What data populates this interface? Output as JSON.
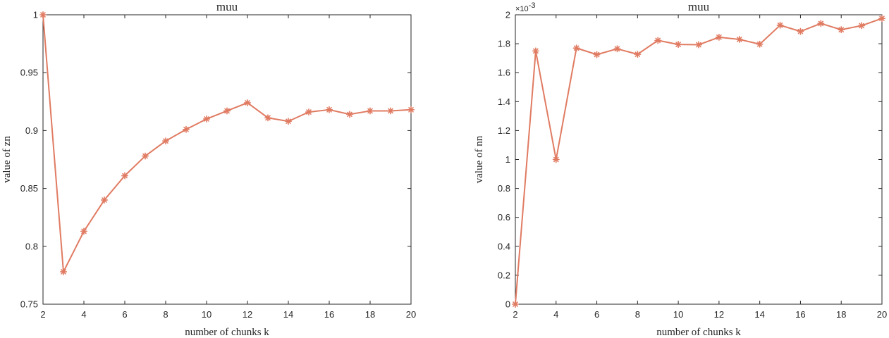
{
  "chart_data": [
    {
      "type": "line",
      "title": "muu",
      "xlabel": "number of chunks k",
      "ylabel": "value of zn",
      "xlim": [
        2,
        20
      ],
      "ylim": [
        0.75,
        1
      ],
      "xticks": [
        2,
        4,
        6,
        8,
        10,
        12,
        14,
        16,
        18,
        20
      ],
      "yticks": [
        0.75,
        0.8,
        0.85,
        0.9,
        0.95,
        1
      ],
      "ytick_labels": [
        "0.75",
        "0.8",
        "0.85",
        "0.9",
        "0.95",
        "1"
      ],
      "grid": false,
      "color": "#E07B62",
      "marker": "asterisk",
      "x": [
        2,
        3,
        4,
        5,
        6,
        7,
        8,
        9,
        10,
        11,
        12,
        13,
        14,
        15,
        16,
        17,
        18,
        19,
        20
      ],
      "y": [
        1.0,
        0.778,
        0.813,
        0.84,
        0.861,
        0.878,
        0.891,
        0.901,
        0.91,
        0.917,
        0.924,
        0.911,
        0.908,
        0.916,
        0.918,
        0.914,
        0.917,
        0.917,
        0.918
      ]
    },
    {
      "type": "line",
      "title": "muu",
      "xlabel": "number of chunks k",
      "ylabel": "value of nn",
      "y_exponent_label": "×10",
      "y_exponent": "-3",
      "xlim": [
        2,
        20
      ],
      "ylim": [
        0,
        2
      ],
      "xticks": [
        2,
        4,
        6,
        8,
        10,
        12,
        14,
        16,
        18,
        20
      ],
      "yticks": [
        0,
        0.2,
        0.4,
        0.6,
        0.8,
        1,
        1.2,
        1.4,
        1.6,
        1.8,
        2
      ],
      "ytick_labels": [
        "0",
        "0.2",
        "0.4",
        "0.6",
        "0.8",
        "1",
        "1.2",
        "1.4",
        "1.6",
        "1.8",
        "2"
      ],
      "grid": false,
      "color": "#E07B62",
      "marker": "asterisk",
      "x": [
        2,
        3,
        4,
        5,
        6,
        7,
        8,
        9,
        10,
        11,
        12,
        13,
        14,
        15,
        16,
        17,
        18,
        19,
        20
      ],
      "y": [
        0,
        1.75,
        1.0,
        1.77,
        1.725,
        1.765,
        1.727,
        1.823,
        1.795,
        1.793,
        1.845,
        1.83,
        1.797,
        1.928,
        1.885,
        1.94,
        1.897,
        1.925,
        1.975
      ]
    }
  ]
}
